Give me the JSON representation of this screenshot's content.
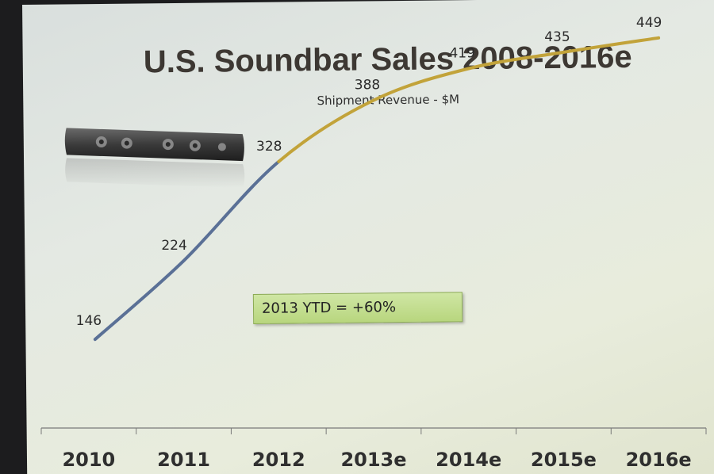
{
  "slide": {
    "title": "U.S. Soundbar Sales 2008-2016e",
    "subtitle": "Shipment Revenue - $M",
    "callout": "2013 YTD = +60%",
    "product_image": "soundbar-speaker-photo"
  },
  "colors": {
    "actual_line": "#5a7096",
    "estimate_line": "#c2a33a",
    "title_text": "#3d3833",
    "callout_fill": "#c4df90"
  },
  "chart_data": {
    "type": "line",
    "title": "U.S. Soundbar Sales 2008-2016e",
    "subtitle": "Shipment Revenue - $M",
    "xlabel": "",
    "ylabel": "",
    "categories": [
      "2010",
      "2011",
      "2012",
      "2013e",
      "2014e",
      "2015e",
      "2016e"
    ],
    "values": [
      146,
      224,
      328,
      388,
      419,
      435,
      449
    ],
    "data_labels": [
      "146",
      "224",
      "328",
      "388",
      "419",
      "435",
      "449"
    ],
    "actual_through": "2012",
    "ylim": [
      100,
      480
    ],
    "grid": false,
    "legend": "none",
    "annotations": [
      "2013 YTD = +60%"
    ]
  }
}
